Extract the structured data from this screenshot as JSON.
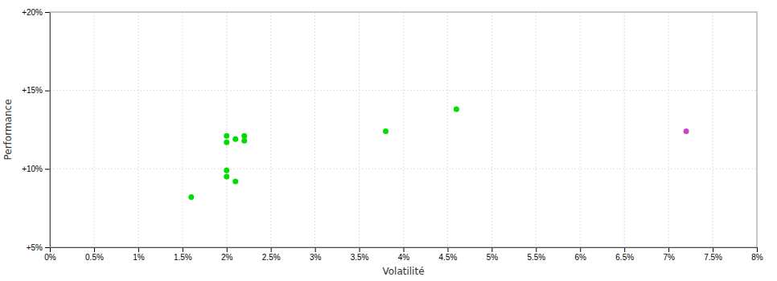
{
  "chart_data": {
    "type": "scatter",
    "xlabel": "Volatilité",
    "ylabel": "Performance",
    "xlim": [
      0.0,
      0.08
    ],
    "ylim": [
      0.05,
      0.2
    ],
    "xticks": [
      {
        "value": 0.0,
        "label": "0%"
      },
      {
        "value": 0.005,
        "label": "0.5%"
      },
      {
        "value": 0.01,
        "label": "1%"
      },
      {
        "value": 0.015,
        "label": "1.5%"
      },
      {
        "value": 0.02,
        "label": "2%"
      },
      {
        "value": 0.025,
        "label": "2.5%"
      },
      {
        "value": 0.03,
        "label": "3%"
      },
      {
        "value": 0.035,
        "label": "3.5%"
      },
      {
        "value": 0.04,
        "label": "4%"
      },
      {
        "value": 0.045,
        "label": "4.5%"
      },
      {
        "value": 0.05,
        "label": "5%"
      },
      {
        "value": 0.055,
        "label": "5.5%"
      },
      {
        "value": 0.06,
        "label": "6%"
      },
      {
        "value": 0.065,
        "label": "6.5%"
      },
      {
        "value": 0.07,
        "label": "7%"
      },
      {
        "value": 0.075,
        "label": "7.5%"
      },
      {
        "value": 0.08,
        "label": "8%"
      }
    ],
    "yticks": [
      {
        "value": 0.05,
        "label": "+5%"
      },
      {
        "value": 0.1,
        "label": "+10%"
      },
      {
        "value": 0.15,
        "label": "+15%"
      },
      {
        "value": 0.2,
        "label": "+20%"
      }
    ],
    "grid": true,
    "series": [
      {
        "color": "#00dd00",
        "x": [
          0.016,
          0.02,
          0.02,
          0.021,
          0.022,
          0.022,
          0.02,
          0.02,
          0.021,
          0.038,
          0.046
        ],
        "values": [
          0.082,
          0.121,
          0.117,
          0.119,
          0.121,
          0.118,
          0.099,
          0.095,
          0.092,
          0.124,
          0.138
        ]
      },
      {
        "color": "#cc44cc",
        "x": [
          0.072
        ],
        "values": [
          0.124
        ]
      }
    ]
  }
}
